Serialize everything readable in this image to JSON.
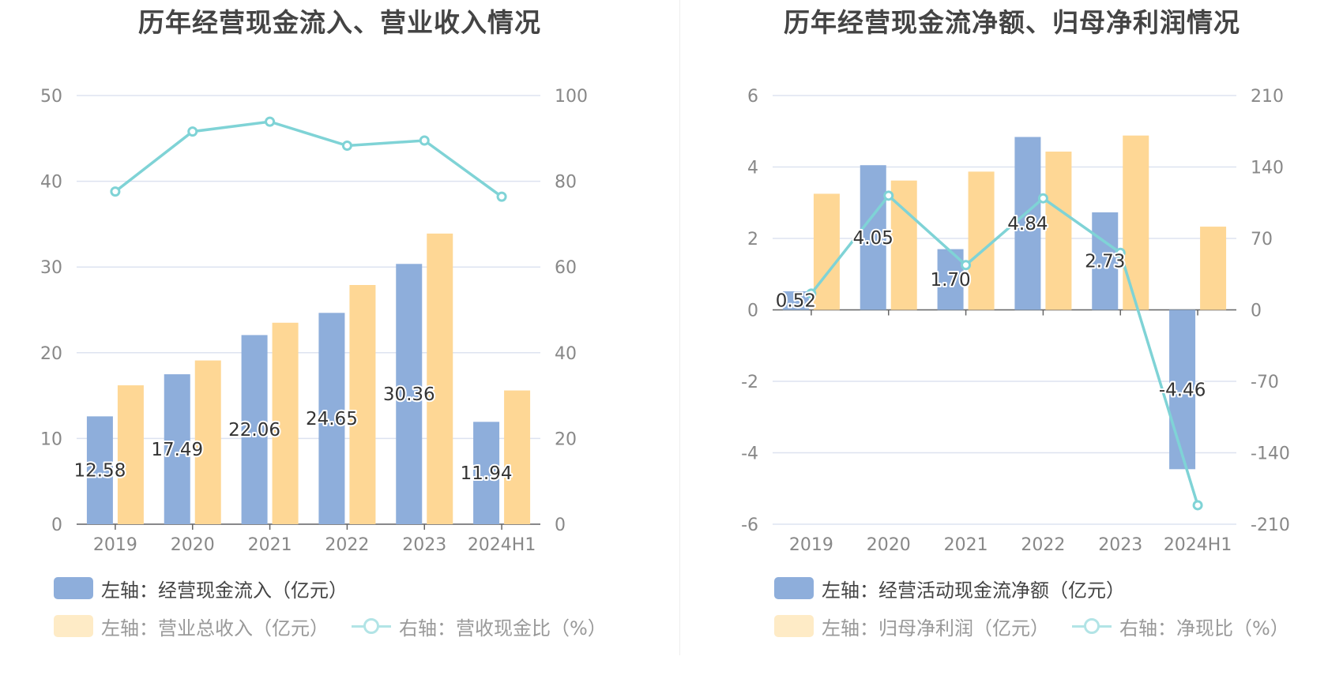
{
  "colors": {
    "bar_blue": "#8eaedb",
    "bar_yellow": "#fed795",
    "line_teal": "#7fd3d6",
    "grid": "#dde3f0",
    "axis_text": "#888888",
    "label_text": "#333333"
  },
  "chart_data": [
    {
      "type": "bar+line",
      "title": "历年经营现金流入、营业收入情况",
      "categories": [
        "2019",
        "2020",
        "2021",
        "2022",
        "2023",
        "2024H1"
      ],
      "left_axis": {
        "ticks": [
          "0",
          "10",
          "20",
          "30",
          "40",
          "50"
        ],
        "ylim": [
          0,
          50
        ]
      },
      "right_axis": {
        "ticks": [
          "0",
          "20",
          "40",
          "60",
          "80",
          "100"
        ],
        "ylim": [
          0,
          100
        ]
      },
      "series": [
        {
          "name": "左轴：经营现金流入（亿元）",
          "type": "bar",
          "axis": "left",
          "color": "#8eaedb",
          "values": [
            12.58,
            17.49,
            22.06,
            24.65,
            30.36,
            11.94
          ],
          "labels": [
            "12.58",
            "17.49",
            "22.06",
            "24.65",
            "30.36",
            "11.94"
          ]
        },
        {
          "name": "左轴：营业总收入（亿元）",
          "type": "bar",
          "axis": "left",
          "color": "#fed795",
          "values": [
            16.2,
            19.1,
            23.5,
            27.9,
            33.9,
            15.6
          ]
        },
        {
          "name": "右轴：营收现金比（%）",
          "type": "line",
          "axis": "right",
          "color": "#7fd3d6",
          "values": [
            77.6,
            91.6,
            93.9,
            88.3,
            89.5,
            76.4
          ]
        }
      ],
      "grid": true,
      "legend_position": "bottom-left"
    },
    {
      "type": "bar+line",
      "title": "历年经营现金流净额、归母净利润情况",
      "categories": [
        "2019",
        "2020",
        "2021",
        "2022",
        "2023",
        "2024H1"
      ],
      "left_axis": {
        "ticks": [
          "-6",
          "-4",
          "-2",
          "0",
          "2",
          "4",
          "6"
        ],
        "ylim": [
          -6,
          6
        ]
      },
      "right_axis": {
        "ticks": [
          "-210",
          "-140",
          "-70",
          "0",
          "70",
          "140",
          "210"
        ],
        "ylim": [
          -210,
          210
        ]
      },
      "series": [
        {
          "name": "左轴：经营活动现金流净额（亿元）",
          "type": "bar",
          "axis": "left",
          "color": "#8eaedb",
          "values": [
            0.52,
            4.05,
            1.7,
            4.84,
            2.73,
            -4.46
          ],
          "labels": [
            "0.52",
            "4.05",
            "1.70",
            "4.84",
            "2.73",
            "-4.46"
          ]
        },
        {
          "name": "左轴：归母净利润（亿元）",
          "type": "bar",
          "axis": "left",
          "color": "#fed795",
          "values": [
            3.25,
            3.62,
            3.87,
            4.43,
            4.88,
            2.33
          ]
        },
        {
          "name": "右轴：净现比（%）",
          "type": "line",
          "axis": "right",
          "color": "#7fd3d6",
          "values": [
            16.0,
            111.9,
            43.9,
            109.3,
            55.9,
            -191.4
          ]
        }
      ],
      "grid": true,
      "legend_position": "bottom-left"
    }
  ]
}
